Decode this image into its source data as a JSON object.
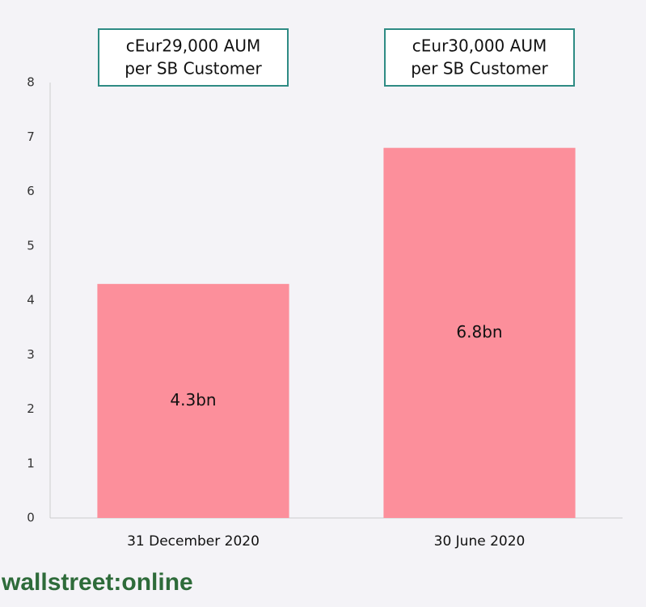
{
  "chart_data": {
    "type": "bar",
    "categories": [
      "31 December 2020",
      "30 June 2020"
    ],
    "values": [
      4.3,
      6.8
    ],
    "value_labels": [
      "4.3bn",
      "6.8bn"
    ],
    "color": "#fc8f9b",
    "ylim": [
      0,
      8
    ],
    "yticks": [
      0,
      1,
      2,
      3,
      4,
      5,
      6,
      7,
      8
    ],
    "grid": false,
    "annotations": [
      [
        "cEur29,000 AUM",
        "per SB Customer"
      ],
      [
        "cEur30,000 AUM",
        "per SB Customer"
      ]
    ],
    "annotation_color": "#2e8b84",
    "watermark": "wallstreet:online"
  }
}
